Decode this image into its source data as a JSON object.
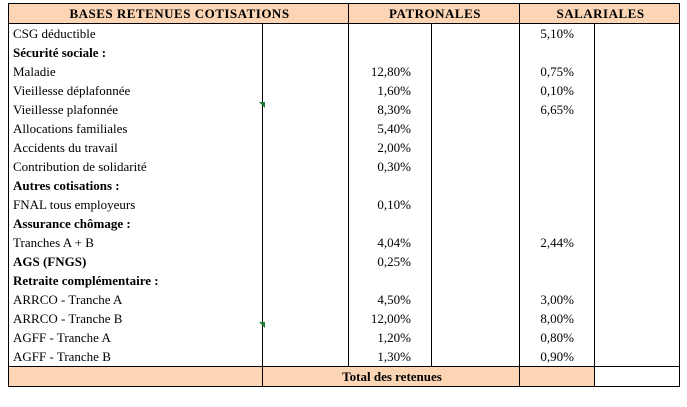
{
  "headers": {
    "bases": "BASES RETENUES COTISATIONS",
    "patronales": "PATRONALES",
    "salariales": "SALARIALES"
  },
  "rows": [
    {
      "label": "CSG déductible",
      "section": false,
      "patronale": "",
      "salariale": "5,10%"
    },
    {
      "label": "Sécurité sociale :",
      "section": true,
      "patronale": "",
      "salariale": ""
    },
    {
      "label": "Maladie",
      "section": false,
      "patronale": "12,80%",
      "salariale": "0,75%"
    },
    {
      "label": "Vieillesse déplafonnée",
      "section": false,
      "patronale": "1,60%",
      "salariale": "0,10%"
    },
    {
      "label": "Vieillesse plafonnée",
      "section": false,
      "patronale": "8,30%",
      "salariale": "6,65%"
    },
    {
      "label": "Allocations familiales",
      "section": false,
      "patronale": "5,40%",
      "salariale": ""
    },
    {
      "label": "Accidents du travail",
      "section": false,
      "patronale": "2,00%",
      "salariale": ""
    },
    {
      "label": "Contribution de solidarité",
      "section": false,
      "patronale": "0,30%",
      "salariale": ""
    },
    {
      "label": "Autres cotisations :",
      "section": true,
      "patronale": "",
      "salariale": ""
    },
    {
      "label": "FNAL tous employeurs",
      "section": false,
      "patronale": "0,10%",
      "salariale": ""
    },
    {
      "label": "Assurance chômage :",
      "section": true,
      "patronale": "",
      "salariale": ""
    },
    {
      "label": "Tranches A + B",
      "section": false,
      "patronale": "4,04%",
      "salariale": "2,44%"
    },
    {
      "label": "AGS (FNGS)",
      "section": true,
      "patronale": "0,25%",
      "salariale": ""
    },
    {
      "label": "Retraite complémentaire :",
      "section": true,
      "patronale": "",
      "salariale": ""
    },
    {
      "label": "ARRCO - Tranche A",
      "section": false,
      "patronale": "4,50%",
      "salariale": "3,00%"
    },
    {
      "label": "ARRCO - Tranche B",
      "section": false,
      "patronale": "12,00%",
      "salariale": "8,00%"
    },
    {
      "label": "AGFF - Tranche A",
      "section": false,
      "patronale": "1,20%",
      "salariale": "0,80%"
    },
    {
      "label": "AGFF - Tranche B",
      "section": false,
      "patronale": "1,30%",
      "salariale": "0,90%"
    }
  ],
  "total": {
    "label": "Total des retenues"
  },
  "colors": {
    "header_fill": "#fcd5b4",
    "marker": "#1e7b34"
  }
}
